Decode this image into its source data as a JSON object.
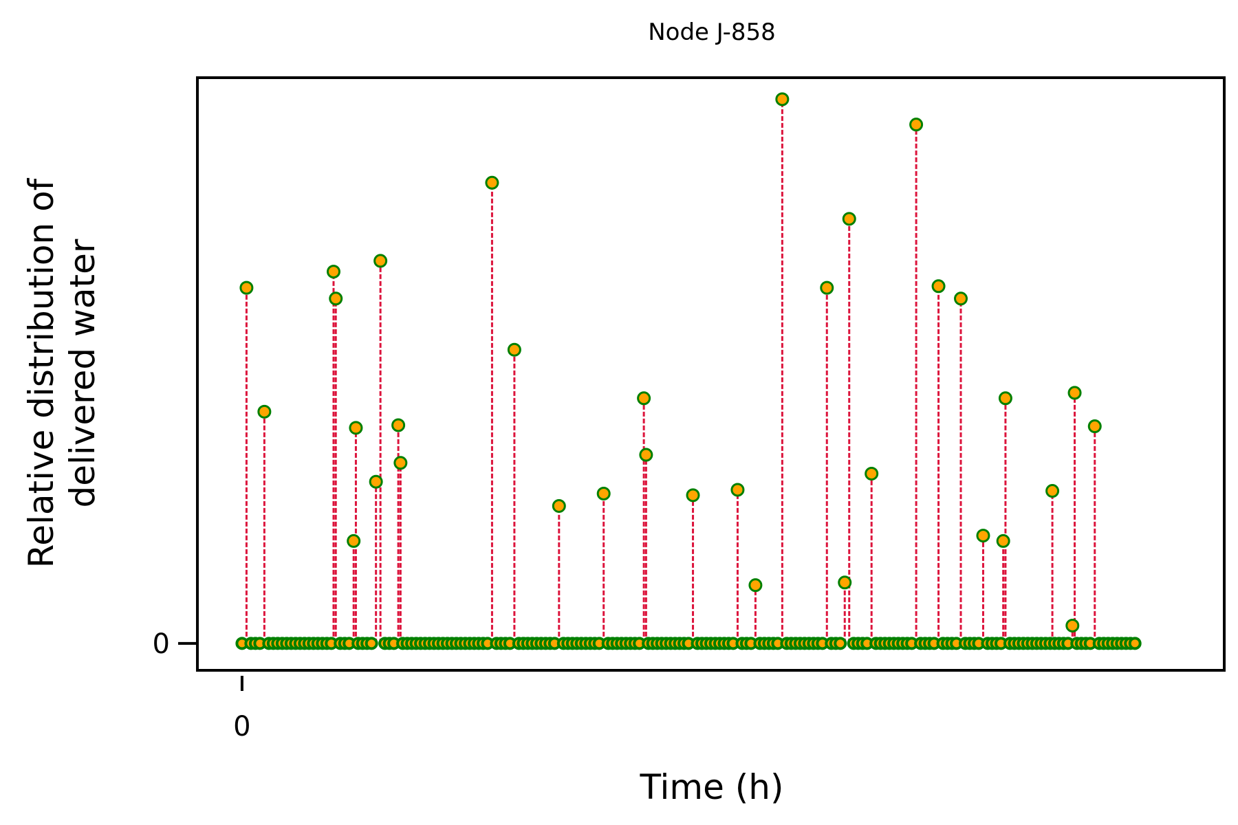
{
  "chart_data": {
    "type": "stem",
    "title": "Node J-858",
    "xlabel": "Time (h)",
    "ylabel_lines": [
      "Relative distribution of",
      "delivered water"
    ],
    "x_ticks": [
      0
    ],
    "x_tick_labels": [
      "0"
    ],
    "y_ticks": [
      0
    ],
    "y_tick_labels": [
      "0"
    ],
    "xlim": [
      -10,
      220
    ],
    "ylim": [
      -0.05,
      1.05
    ],
    "x_range": [
      0,
      200
    ],
    "grid": false,
    "legend": "none",
    "colors": {
      "title": "#ff0000",
      "stem_line": "#dc143c",
      "marker_fill": "#ffa500",
      "marker_edge": "#008000",
      "frame": "#000000"
    },
    "peaks": [
      {
        "x": 1,
        "y": 0.66
      },
      {
        "x": 5,
        "y": 0.43
      },
      {
        "x": 20.5,
        "y": 0.69
      },
      {
        "x": 21,
        "y": 0.64
      },
      {
        "x": 25,
        "y": 0.19
      },
      {
        "x": 25.5,
        "y": 0.4
      },
      {
        "x": 30,
        "y": 0.3
      },
      {
        "x": 31,
        "y": 0.71
      },
      {
        "x": 35,
        "y": 0.405
      },
      {
        "x": 35.5,
        "y": 0.335
      },
      {
        "x": 56,
        "y": 0.855
      },
      {
        "x": 61,
        "y": 0.545
      },
      {
        "x": 71,
        "y": 0.255
      },
      {
        "x": 81,
        "y": 0.278
      },
      {
        "x": 90,
        "y": 0.455
      },
      {
        "x": 90.5,
        "y": 0.35
      },
      {
        "x": 101,
        "y": 0.275
      },
      {
        "x": 111,
        "y": 0.285
      },
      {
        "x": 115,
        "y": 0.108
      },
      {
        "x": 121,
        "y": 1.01
      },
      {
        "x": 131,
        "y": 0.66
      },
      {
        "x": 135,
        "y": 0.113
      },
      {
        "x": 136,
        "y": 0.788
      },
      {
        "x": 141,
        "y": 0.315
      },
      {
        "x": 151,
        "y": 0.963
      },
      {
        "x": 156,
        "y": 0.663
      },
      {
        "x": 161,
        "y": 0.64
      },
      {
        "x": 166,
        "y": 0.2
      },
      {
        "x": 170.5,
        "y": 0.19
      },
      {
        "x": 171,
        "y": 0.455
      },
      {
        "x": 181.5,
        "y": 0.283
      },
      {
        "x": 186,
        "y": 0.033
      },
      {
        "x": 186.5,
        "y": 0.465
      },
      {
        "x": 191,
        "y": 0.403
      }
    ],
    "baseline_value": 0,
    "baseline_step": 1
  }
}
